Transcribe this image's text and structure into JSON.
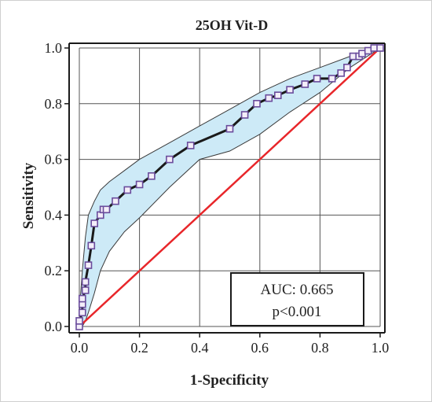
{
  "chart_data": {
    "type": "line",
    "title": "25OH Vit-D",
    "xlabel": "1-Specificity",
    "ylabel": "Sensitivity",
    "xlim": [
      0.0,
      1.0
    ],
    "ylim": [
      0.0,
      1.0
    ],
    "x_ticks": [
      "0.0",
      "0.2",
      "0.4",
      "0.6",
      "0.8",
      "1.0"
    ],
    "y_ticks": [
      "0.0",
      "0.2",
      "0.4",
      "0.6",
      "0.8",
      "1.0"
    ],
    "grid": true,
    "legend": "none",
    "annotation": {
      "auc": "AUC: 0.665",
      "p": "p<0.001",
      "position": "bottom-right"
    },
    "colors": {
      "roc_line": "#1a1a1a",
      "marker_stroke": "#6a4c9c",
      "marker_fill": "#f4eef9",
      "ci_band": "#cdeaf7",
      "ci_edge": "#3a3a3a",
      "reference_line": "#e8262a",
      "grid": "#555555"
    },
    "series": [
      {
        "type": "roc",
        "x": [
          0.0,
          0.0,
          0.01,
          0.01,
          0.01,
          0.02,
          0.02,
          0.03,
          0.04,
          0.05,
          0.07,
          0.08,
          0.09,
          0.12,
          0.16,
          0.2,
          0.24,
          0.3,
          0.37,
          0.5,
          0.55,
          0.59,
          0.63,
          0.66,
          0.7,
          0.75,
          0.79,
          0.84,
          0.87,
          0.89,
          0.91,
          0.93,
          0.94,
          0.96,
          0.98,
          1.0
        ],
        "y": [
          0.0,
          0.02,
          0.05,
          0.08,
          0.1,
          0.13,
          0.16,
          0.22,
          0.29,
          0.37,
          0.4,
          0.42,
          0.42,
          0.45,
          0.49,
          0.51,
          0.54,
          0.6,
          0.65,
          0.71,
          0.76,
          0.8,
          0.82,
          0.83,
          0.85,
          0.87,
          0.89,
          0.89,
          0.91,
          0.93,
          0.97,
          0.97,
          0.98,
          0.99,
          1.0,
          1.0
        ]
      },
      {
        "type": "ci_upper",
        "x": [
          0.0,
          0.01,
          0.02,
          0.03,
          0.05,
          0.07,
          0.1,
          0.15,
          0.2,
          0.3,
          0.4,
          0.5,
          0.6,
          0.7,
          0.8,
          0.9,
          1.0
        ],
        "y": [
          0.05,
          0.2,
          0.32,
          0.4,
          0.45,
          0.49,
          0.52,
          0.56,
          0.6,
          0.66,
          0.72,
          0.78,
          0.84,
          0.89,
          0.93,
          0.97,
          1.0
        ]
      },
      {
        "type": "ci_lower",
        "x": [
          0.0,
          0.01,
          0.02,
          0.03,
          0.05,
          0.07,
          0.1,
          0.15,
          0.2,
          0.3,
          0.4,
          0.5,
          0.6,
          0.7,
          0.8,
          0.9,
          1.0
        ],
        "y": [
          0.0,
          0.0,
          0.02,
          0.05,
          0.12,
          0.2,
          0.27,
          0.34,
          0.39,
          0.5,
          0.6,
          0.63,
          0.69,
          0.77,
          0.84,
          0.93,
          1.0
        ]
      },
      {
        "type": "reference",
        "x": [
          0.0,
          1.0
        ],
        "y": [
          0.0,
          1.0
        ]
      }
    ]
  }
}
